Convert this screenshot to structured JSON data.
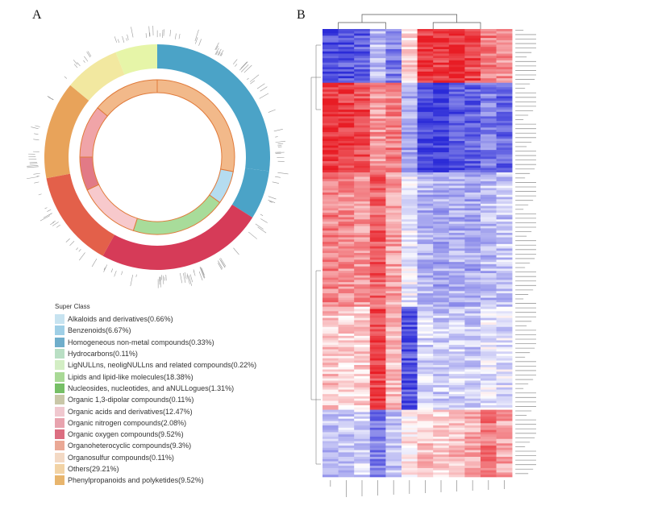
{
  "panels": {
    "a_letter": "A",
    "b_letter": "B"
  },
  "chart_data": [
    {
      "type": "pie",
      "variant": "circular ring plot",
      "legend_title": "Super Class",
      "legend_placement": "bottom-left",
      "categories": [
        {
          "name": "Alkaloids and derivatives",
          "label": "Alkaloids and derivatives(0.66%)",
          "value": 0.66,
          "color": "#c7e3f0"
        },
        {
          "name": "Benzenoids",
          "label": "Benzenoids(6.67%)",
          "value": 6.67,
          "color": "#9fcfe6"
        },
        {
          "name": "Homogeneous non-metal compounds",
          "label": "Homogeneous non-metal compounds(0.33%)",
          "value": 0.33,
          "color": "#6faecb"
        },
        {
          "name": "Hydrocarbons",
          "label": "Hydrocarbons(0.11%)",
          "value": 0.11,
          "color": "#b9dfc4"
        },
        {
          "name": "LigNULLns, neoligNULLns and related compounds",
          "label": "LigNULLns, neoligNULLns and related compounds(0.22%)",
          "value": 0.22,
          "color": "#d3eec4"
        },
        {
          "name": "Lipids and lipid-like molecules",
          "label": "Lipids and lipid-like molecules(18.38%)",
          "value": 18.38,
          "color": "#a9d996"
        },
        {
          "name": "Nucleosides, nucleotides, and aNULLogues",
          "label": "Nucleosides, nucleotides, and aNULLogues(1.31%)",
          "value": 1.31,
          "color": "#76bf66"
        },
        {
          "name": "Organic 1,3-dipolar compounds",
          "label": "Organic 1,3-dipolar compounds(0.11%)",
          "value": 0.11,
          "color": "#c9c7a8"
        },
        {
          "name": "Organic acids and derivatives",
          "label": "Organic acids and derivatives(12.47%)",
          "value": 12.47,
          "color": "#f0c8cf"
        },
        {
          "name": "Organic nitrogen compounds",
          "label": "Organic nitrogen compounds(2.08%)",
          "value": 2.08,
          "color": "#e8a3ae"
        },
        {
          "name": "Organic oxygen compounds",
          "label": "Organic oxygen compounds(9.52%)",
          "value": 9.52,
          "color": "#dc6e81"
        },
        {
          "name": "Organoheterocyclic compounds",
          "label": "Organoheterocyclic compounds(9.3%)",
          "value": 9.3,
          "color": "#eaa895"
        },
        {
          "name": "Organosulfur compounds",
          "label": "Organosulfur compounds(0.11%)",
          "value": 0.11,
          "color": "#f3d9c4"
        },
        {
          "name": "Others",
          "label": "Others(29.21%)",
          "value": 29.21,
          "color": "#f2d3a5"
        },
        {
          "name": "Phenylpropanoids and polyketides",
          "label": "Phenylpropanoids and polyketides(9.52%)",
          "value": 9.52,
          "color": "#e8b56d"
        }
      ],
      "outer_ring_colors": [
        "#4ba3c7",
        "#d63b58",
        "#e3604a",
        "#e8a35a",
        "#f2e8a0",
        "#e6f5a8"
      ],
      "inner_ring_colors": [
        "#f2b98a",
        "#b5dcf0",
        "#a8dc9a",
        "#f7c9cc",
        "#e27a86",
        "#f0a4a8"
      ]
    },
    {
      "type": "heatmap",
      "legend_placement": "none",
      "columns": 12,
      "rows": 200,
      "color_scale": [
        "#2b2bd8",
        "#ffffff",
        "#e81c24"
      ],
      "column_clusters": [
        [
          0,
          1,
          2,
          3,
          4,
          5
        ],
        [
          6,
          7,
          8,
          9,
          10,
          11
        ]
      ],
      "row_blocks": [
        {
          "rows": 24,
          "pattern": [
            -0.85,
            -0.8,
            -0.75,
            -0.3,
            -0.6,
            0.2,
            0.9,
            0.85,
            0.9,
            0.8,
            0.6,
            0.5
          ]
        },
        {
          "rows": 40,
          "pattern": [
            0.9,
            0.85,
            0.8,
            0.45,
            0.55,
            -0.4,
            -0.85,
            -0.9,
            -0.8,
            -0.75,
            -0.6,
            -0.7
          ]
        },
        {
          "rows": 60,
          "pattern": [
            0.55,
            0.5,
            0.45,
            0.7,
            0.4,
            -0.1,
            -0.35,
            -0.4,
            -0.35,
            -0.4,
            -0.3,
            -0.25
          ]
        },
        {
          "rows": 46,
          "pattern": [
            0.25,
            0.2,
            0.2,
            0.8,
            0.3,
            -0.8,
            -0.2,
            -0.25,
            -0.2,
            -0.25,
            -0.1,
            -0.15
          ]
        },
        {
          "rows": 30,
          "pattern": [
            -0.3,
            -0.25,
            -0.2,
            -0.6,
            -0.3,
            0.1,
            0.25,
            0.2,
            0.3,
            0.35,
            0.6,
            0.4
          ]
        }
      ]
    }
  ]
}
